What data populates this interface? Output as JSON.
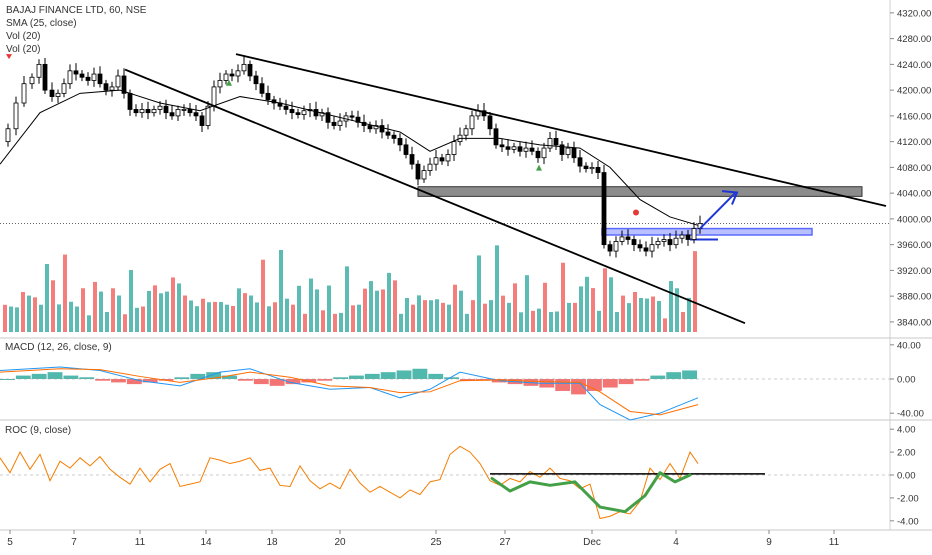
{
  "legends": {
    "symbol": "BAJAJ FINANCE LTD, 60, NSE",
    "sma": "SMA (25, close)",
    "vol1": "Vol (20)",
    "vol2": "Vol (20)",
    "macd": "MACD (12, 26, close, 9)",
    "roc": "ROC (9, close)"
  },
  "colors": {
    "up_candle": "#ffffff",
    "down_candle": "#000000",
    "vol_up": "#26a69a",
    "vol_down": "#ef5350",
    "sma": "#000000",
    "macd_line": "#2196f3",
    "signal_line": "#ff6d00",
    "roc_line": "#f57c00",
    "roc_curve": "#43a047",
    "arrow": "#1e36d6",
    "zone_gray": "#8c8c8c",
    "zone_blue": "#5c6bff"
  },
  "chart_data": [
    {
      "type": "candlestick",
      "title": "BAJAJ FINANCE LTD, 60, NSE",
      "x_ticks": [
        "5",
        "7",
        "11",
        "14",
        "18",
        "20",
        "25",
        "27",
        "Dec",
        "4",
        "9",
        "11"
      ],
      "y_ticks": [
        3840,
        3880,
        3920,
        3960,
        4000,
        4040,
        4080,
        4120,
        4160,
        4200,
        4240,
        4280,
        4320
      ],
      "ylim": [
        3815,
        4340
      ],
      "current_price": 3993,
      "close_path": [
        [
          0,
          4120
        ],
        [
          6,
          4140
        ],
        [
          14,
          4180
        ],
        [
          22,
          4210
        ],
        [
          30,
          4220
        ],
        [
          37,
          4240
        ],
        [
          43,
          4200
        ],
        [
          50,
          4190
        ],
        [
          56,
          4195
        ],
        [
          62,
          4210
        ],
        [
          68,
          4230
        ],
        [
          74,
          4225
        ],
        [
          80,
          4220
        ],
        [
          86,
          4215
        ],
        [
          92,
          4225
        ],
        [
          98,
          4210
        ],
        [
          104,
          4200
        ],
        [
          110,
          4205
        ],
        [
          116,
          4222
        ],
        [
          122,
          4195
        ],
        [
          128,
          4170
        ],
        [
          134,
          4165
        ],
        [
          140,
          4170
        ],
        [
          146,
          4165
        ],
        [
          152,
          4170
        ],
        [
          158,
          4175
        ],
        [
          164,
          4165
        ],
        [
          170,
          4160
        ],
        [
          176,
          4170
        ],
        [
          182,
          4170
        ],
        [
          188,
          4165
        ],
        [
          194,
          4160
        ],
        [
          200,
          4145
        ],
        [
          206,
          4175
        ],
        [
          212,
          4205
        ],
        [
          218,
          4215
        ],
        [
          224,
          4225
        ],
        [
          230,
          4222
        ],
        [
          236,
          4230
        ],
        [
          242,
          4240
        ],
        [
          248,
          4222
        ],
        [
          254,
          4210
        ],
        [
          260,
          4195
        ],
        [
          266,
          4185
        ],
        [
          272,
          4180
        ],
        [
          278,
          4175
        ],
        [
          284,
          4170
        ],
        [
          290,
          4165
        ],
        [
          296,
          4162
        ],
        [
          302,
          4168
        ],
        [
          308,
          4170
        ],
        [
          314,
          4160
        ],
        [
          320,
          4165
        ],
        [
          326,
          4150
        ],
        [
          332,
          4145
        ],
        [
          338,
          4152
        ],
        [
          344,
          4160
        ],
        [
          350,
          4158
        ],
        [
          356,
          4150
        ],
        [
          362,
          4145
        ],
        [
          368,
          4140
        ],
        [
          374,
          4145
        ],
        [
          380,
          4135
        ],
        [
          386,
          4130
        ],
        [
          392,
          4125
        ],
        [
          398,
          4115
        ],
        [
          404,
          4100
        ],
        [
          410,
          4085
        ],
        [
          416,
          4062
        ],
        [
          422,
          4075
        ],
        [
          428,
          4085
        ],
        [
          434,
          4095
        ],
        [
          440,
          4090
        ],
        [
          446,
          4100
        ],
        [
          452,
          4120
        ],
        [
          458,
          4130
        ],
        [
          464,
          4140
        ],
        [
          470,
          4160
        ],
        [
          476,
          4168
        ],
        [
          482,
          4160
        ],
        [
          488,
          4140
        ],
        [
          494,
          4115
        ],
        [
          500,
          4112
        ],
        [
          506,
          4108
        ],
        [
          512,
          4112
        ],
        [
          518,
          4105
        ],
        [
          524,
          4110
        ],
        [
          530,
          4105
        ],
        [
          536,
          4095
        ],
        [
          542,
          4110
        ],
        [
          548,
          4125
        ],
        [
          554,
          4115
        ],
        [
          560,
          4100
        ],
        [
          566,
          4110
        ],
        [
          572,
          4095
        ],
        [
          578,
          4082
        ],
        [
          584,
          4078
        ],
        [
          590,
          4080
        ],
        [
          596,
          4072
        ],
        [
          602,
          3960
        ],
        [
          608,
          3950
        ],
        [
          614,
          3965
        ],
        [
          620,
          3972
        ],
        [
          626,
          3968
        ],
        [
          632,
          3960
        ],
        [
          638,
          3955
        ],
        [
          644,
          3950
        ],
        [
          650,
          3960
        ],
        [
          656,
          3965
        ],
        [
          662,
          3968
        ],
        [
          668,
          3960
        ],
        [
          674,
          3970
        ],
        [
          680,
          3975
        ],
        [
          686,
          3968
        ],
        [
          692,
          3985
        ],
        [
          698,
          3993
        ]
      ],
      "series": [
        {
          "name": "SMA (25, close)",
          "x": [
            0,
            40,
            80,
            120,
            160,
            200,
            240,
            280,
            320,
            360,
            400,
            430,
            460,
            500,
            540,
            580,
            610,
            640,
            670,
            698
          ],
          "values": [
            4085,
            4165,
            4195,
            4200,
            4180,
            4168,
            4190,
            4180,
            4165,
            4150,
            4135,
            4105,
            4125,
            4125,
            4115,
            4110,
            4080,
            4030,
            4003,
            3990
          ]
        }
      ],
      "volume": [
        90,
        60,
        45,
        120,
        80,
        60,
        75,
        140,
        85,
        70,
        150,
        100,
        60,
        80,
        50,
        110,
        70,
        55
      ],
      "annotations": {
        "trend_lines": [
          {
            "x1": 0,
            "y1": 4345,
            "x2": 270,
            "y2": 4370
          },
          {
            "x1": 125,
            "y1": 4232,
            "x2": 745,
            "y2": 3838
          },
          {
            "x1": 236,
            "y1": 4256,
            "x2": 886,
            "y2": 4020
          }
        ],
        "support_level": 4040
      }
    },
    {
      "type": "line",
      "title": "MACD (12, 26, close, 9)",
      "y_ticks": [
        "40.00",
        "0.00",
        "-40.00"
      ],
      "ylim": [
        -48,
        48
      ],
      "series": [
        {
          "name": "MACD",
          "x": [
            0,
            60,
            100,
            140,
            180,
            220,
            250,
            290,
            330,
            370,
            400,
            430,
            460,
            500,
            540,
            580,
            600,
            630,
            660,
            698
          ],
          "values": [
            10,
            14,
            10,
            -2,
            -8,
            8,
            12,
            -4,
            -12,
            -10,
            -22,
            -12,
            8,
            -2,
            -5,
            -5,
            -30,
            -48,
            -40,
            -22
          ]
        },
        {
          "name": "Signal",
          "x": [
            0,
            60,
            100,
            140,
            180,
            220,
            250,
            290,
            330,
            370,
            400,
            430,
            460,
            500,
            540,
            580,
            600,
            630,
            660,
            698
          ],
          "values": [
            8,
            12,
            11,
            3,
            -4,
            2,
            8,
            2,
            -8,
            -10,
            -16,
            -15,
            -2,
            -1,
            -3,
            -4,
            -15,
            -38,
            -42,
            -30
          ]
        }
      ],
      "histogram": [
        0,
        4,
        6,
        8,
        4,
        2,
        -2,
        -4,
        -6,
        -4,
        -2,
        2,
        6,
        8,
        4,
        -2,
        -6,
        -8,
        -6,
        -4,
        -2,
        2,
        4,
        6,
        8,
        10,
        12,
        6,
        2,
        -2,
        -2,
        -4,
        -6,
        -8,
        -10,
        -14,
        -18,
        -14,
        -10,
        -6,
        -2,
        4,
        8,
        10
      ]
    },
    {
      "type": "line",
      "title": "ROC (9, close)",
      "y_ticks": [
        "4.00",
        "2.00",
        "0.00",
        "-2.00",
        "-4.00"
      ],
      "ylim": [
        -4.8,
        4.8
      ],
      "series": [
        {
          "name": "ROC",
          "x": [
            0,
            10,
            20,
            30,
            40,
            50,
            60,
            70,
            80,
            90,
            100,
            110,
            120,
            130,
            140,
            150,
            160,
            170,
            180,
            190,
            200,
            210,
            220,
            230,
            240,
            250,
            260,
            270,
            280,
            290,
            300,
            310,
            320,
            330,
            340,
            350,
            360,
            370,
            380,
            390,
            400,
            410,
            420,
            430,
            440,
            450,
            460,
            470,
            480,
            490,
            500,
            510,
            520,
            530,
            540,
            550,
            560,
            570,
            580,
            590,
            600,
            610,
            620,
            630,
            640,
            650,
            660,
            670,
            680,
            690,
            698
          ],
          "values": [
            1.5,
            0.2,
            2.0,
            0.5,
            1.8,
            -0.5,
            1.2,
            0.6,
            1.5,
            0.8,
            1.6,
            0.5,
            -0.2,
            -0.8,
            0.6,
            -0.6,
            0.5,
            1.0,
            -1.0,
            -0.8,
            -0.6,
            1.5,
            1.3,
            1.0,
            1.2,
            1.5,
            0.4,
            0.6,
            -0.9,
            -1.0,
            0.8,
            -0.5,
            -1.2,
            -0.7,
            -1.2,
            0.5,
            -0.7,
            -1.5,
            -1.0,
            -1.5,
            -2.0,
            -1.3,
            -1.7,
            -0.6,
            -0.4,
            1.8,
            2.5,
            2.0,
            1.0,
            -0.5,
            -0.9,
            -0.3,
            -0.6,
            0.3,
            -0.2,
            0.6,
            -0.3,
            -0.5,
            -1.2,
            -0.8,
            -3.8,
            -3.6,
            -3.2,
            -3.4,
            -2.3,
            0.6,
            -0.4,
            1.0,
            -0.3,
            2.0,
            1.0
          ]
        },
        {
          "name": "ROC smoothing curve",
          "x": [
            492,
            510,
            530,
            550,
            575,
            600,
            625,
            645,
            660,
            675,
            690
          ],
          "values": [
            -0.3,
            -1.4,
            -0.6,
            -0.9,
            -0.6,
            -2.8,
            -3.2,
            -1.8,
            0.2,
            -0.6,
            0.0
          ]
        }
      ],
      "annotations": {
        "level_line": {
          "x1": 490,
          "x2": 765,
          "value": 0.1
        }
      }
    }
  ]
}
